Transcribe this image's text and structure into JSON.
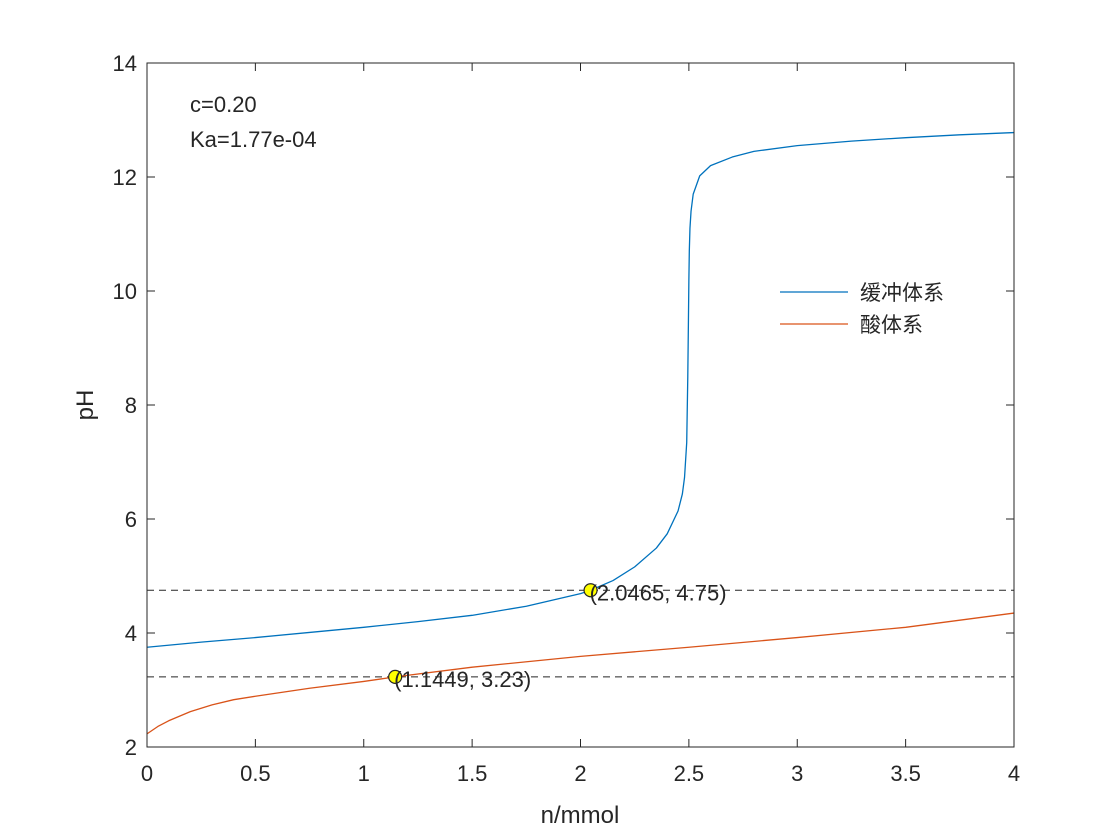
{
  "chart_data": {
    "type": "line",
    "xlabel": "n/mmol",
    "ylabel": "pH",
    "xlim": [
      0,
      4
    ],
    "ylim": [
      2,
      14
    ],
    "xticks": [
      "0",
      "0.5",
      "1",
      "1.5",
      "2",
      "2.5",
      "3",
      "3.5",
      "4"
    ],
    "yticks": [
      "2",
      "4",
      "6",
      "8",
      "10",
      "12",
      "14"
    ],
    "grid": false,
    "legend_position": "right",
    "annotations": {
      "c_text": "c=0.20",
      "ka_text": "Ka=1.77e-04"
    },
    "series": [
      {
        "name": "缓冲体系",
        "color": "#0072BD",
        "x": [
          0,
          0.25,
          0.5,
          0.75,
          1.0,
          1.25,
          1.5,
          1.75,
          2.0,
          2.0465,
          2.15,
          2.25,
          2.35,
          2.4,
          2.45,
          2.47,
          2.48,
          2.49,
          2.495,
          2.498,
          2.5,
          2.502,
          2.505,
          2.51,
          2.52,
          2.55,
          2.6,
          2.7,
          2.8,
          3.0,
          3.25,
          3.5,
          3.75,
          4.0
        ],
        "values": [
          3.75,
          3.84,
          3.92,
          4.01,
          4.1,
          4.2,
          4.31,
          4.47,
          4.69,
          4.75,
          4.92,
          5.16,
          5.49,
          5.74,
          6.14,
          6.44,
          6.73,
          7.34,
          8.5,
          9.5,
          10.2,
          10.7,
          11.1,
          11.4,
          11.7,
          12.02,
          12.2,
          12.35,
          12.45,
          12.55,
          12.63,
          12.69,
          12.74,
          12.78
        ]
      },
      {
        "name": "酸体系",
        "color": "#D95319",
        "x": [
          0,
          0.05,
          0.1,
          0.2,
          0.3,
          0.4,
          0.5,
          0.75,
          1.0,
          1.1449,
          1.5,
          2.0,
          2.5,
          3.0,
          3.5,
          4.0
        ],
        "values": [
          2.23,
          2.36,
          2.46,
          2.62,
          2.74,
          2.83,
          2.89,
          3.03,
          3.15,
          3.23,
          3.4,
          3.59,
          3.75,
          3.92,
          4.1,
          4.35
        ]
      }
    ],
    "reference_lines": [
      {
        "y": 4.75
      },
      {
        "y": 3.23
      }
    ],
    "markers": [
      {
        "x": 2.0465,
        "y": 4.75,
        "label": "(2.0465, 4.75)"
      },
      {
        "x": 1.1449,
        "y": 3.23,
        "label": "(1.1449, 3.23)"
      }
    ]
  }
}
